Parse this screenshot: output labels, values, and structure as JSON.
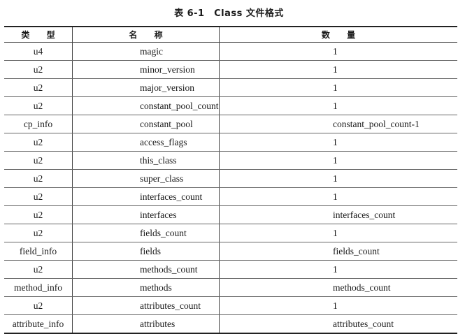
{
  "title": "表 6-1　Class 文件格式",
  "headers": [
    "类 型",
    "名 称",
    "数 量"
  ],
  "rows": [
    [
      "u4",
      "magic",
      "1"
    ],
    [
      "u2",
      "minor_version",
      "1"
    ],
    [
      "u2",
      "major_version",
      "1"
    ],
    [
      "u2",
      "constant_pool_count",
      "1"
    ],
    [
      "cp_info",
      "constant_pool",
      "constant_pool_count-1"
    ],
    [
      "u2",
      "access_flags",
      "1"
    ],
    [
      "u2",
      "this_class",
      "1"
    ],
    [
      "u2",
      "super_class",
      "1"
    ],
    [
      "u2",
      "interfaces_count",
      "1"
    ],
    [
      "u2",
      "interfaces",
      "interfaces_count"
    ],
    [
      "u2",
      "fields_count",
      "1"
    ],
    [
      "field_info",
      "fields",
      "fields_count"
    ],
    [
      "u2",
      "methods_count",
      "1"
    ],
    [
      "method_info",
      "methods",
      "methods_count"
    ],
    [
      "u2",
      "attributes_count",
      "1"
    ],
    [
      "attribute_info",
      "attributes",
      "attributes_count"
    ]
  ]
}
